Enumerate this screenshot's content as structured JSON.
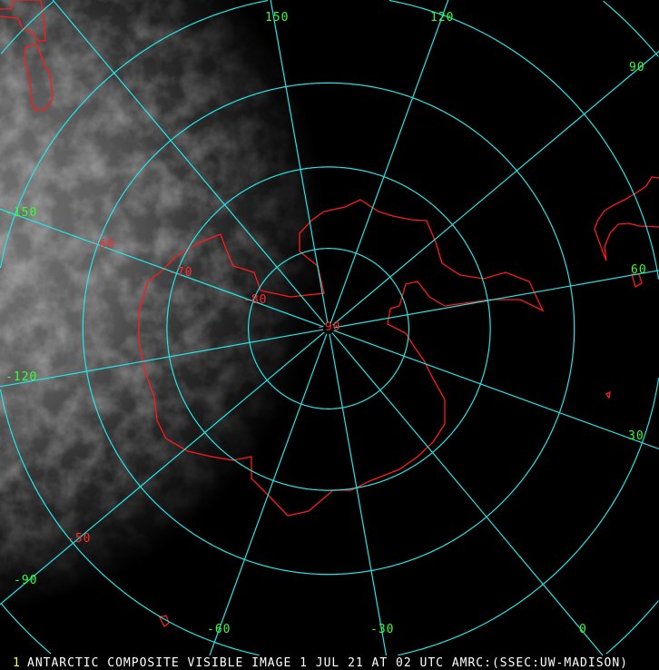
{
  "caption": "ANTARCTIC COMPOSITE VISIBLE IMAGE 1 JUL 21 AT 02 UTC AMRC:(SSEC:UW-MADISON)",
  "frame_number": "1",
  "projection": "polar stereographic, south pole centered",
  "grid": {
    "latitudes": [
      -80,
      -70,
      -60,
      -50,
      -40
    ],
    "longitudes": [
      -150,
      -120,
      -90,
      -60,
      -30,
      0,
      30,
      60,
      90,
      120,
      150,
      180
    ]
  },
  "longitude_labels": [
    "150",
    "120",
    "90",
    "60",
    "30",
    "0",
    "-30",
    "-60",
    "-90",
    "-120",
    "-150"
  ],
  "latitude_labels": [
    "-50",
    "-60",
    "-70",
    "-80",
    "-90"
  ],
  "colors": {
    "grid": "#22e6e6",
    "coastline": "#ff1a1a",
    "longitude_label": "#33ff33",
    "latitude_label": "#ff2a2a",
    "caption": "#ffffff",
    "frame_number": "#ffff33"
  }
}
